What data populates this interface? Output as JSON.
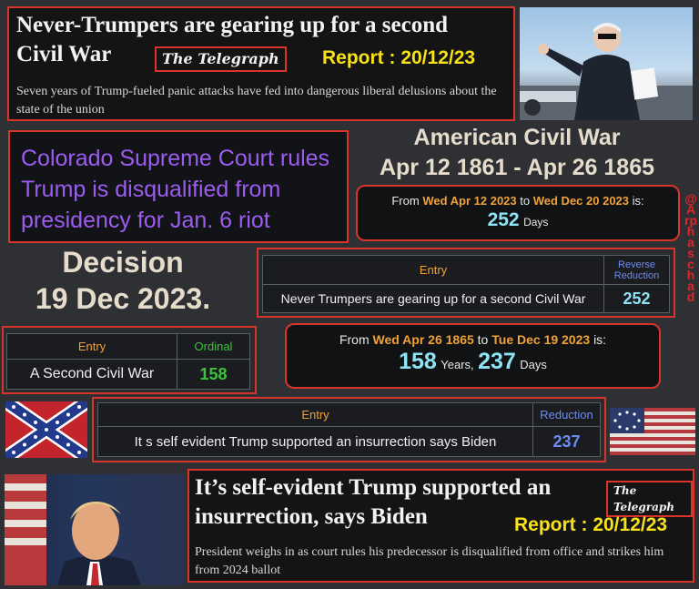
{
  "top_headline": {
    "title_line1": "Never-Trumpers are gearing up for a second",
    "title_line2": "Civil War",
    "outlet": "The Telegraph",
    "report": "Report : 20/12/23",
    "subtitle": "Seven years of Trump-fueled panic attacks have fed into dangerous liberal delusions about the state of the union"
  },
  "colorado_box": {
    "text": "Colorado Supreme Court rules Trump is disqualified from presidency for Jan. 6 riot",
    "color": "#9d5cf0"
  },
  "civil_war_title": {
    "line1": "American Civil War",
    "line2": "Apr 12 1861 - Apr 26 1865"
  },
  "calc1": {
    "from_label": "From",
    "from_date": "Wed Apr 12 2023",
    "to_label": "to",
    "to_date": "Wed Dec 20 2023",
    "is_label": "is:",
    "days_value": "252",
    "days_unit": "Days"
  },
  "handle": "@Arphaschad",
  "decision": {
    "line1": "Decision",
    "line2": "19 Dec 2023."
  },
  "table_reverse": {
    "col1": "Entry",
    "col2": "Reverse Reduction",
    "entry": "Never Trumpers are gearing up for a second Civil War",
    "value": "252"
  },
  "table_ordinal": {
    "col1": "Entry",
    "col2": "Ordinal",
    "entry": "A Second Civil War",
    "value": "158"
  },
  "calc2": {
    "from_label": "From",
    "from_date": "Wed Apr 26 1865",
    "to_label": "to",
    "to_date": "Tue Dec 19 2023",
    "is_label": "is:",
    "years_value": "158",
    "years_unit": "Years,",
    "days_value": "237",
    "days_unit": "Days"
  },
  "table_reduction": {
    "col1": "Entry",
    "col2": "Reduction",
    "entry": "It s self evident Trump supported an insurrection says Biden",
    "value": "237"
  },
  "bottom_headline": {
    "title_line1": "It’s self-evident Trump supported an",
    "title_line2": "insurrection, says Biden",
    "outlet": "The Telegraph",
    "report": "Report : 20/12/23",
    "subtitle": "President weighs in as court rules his predecessor is disqualified from office and strikes him from 2024 ballot"
  },
  "colors": {
    "frame_red": "#d9342b",
    "report_yellow": "#f7e11a",
    "date_orange": "#f0a23a",
    "number_cyan": "#8ee3f5",
    "ordinal_green": "#3cc43c",
    "reduction_blue": "#6c8cf2",
    "handle_red": "#e0252a"
  }
}
